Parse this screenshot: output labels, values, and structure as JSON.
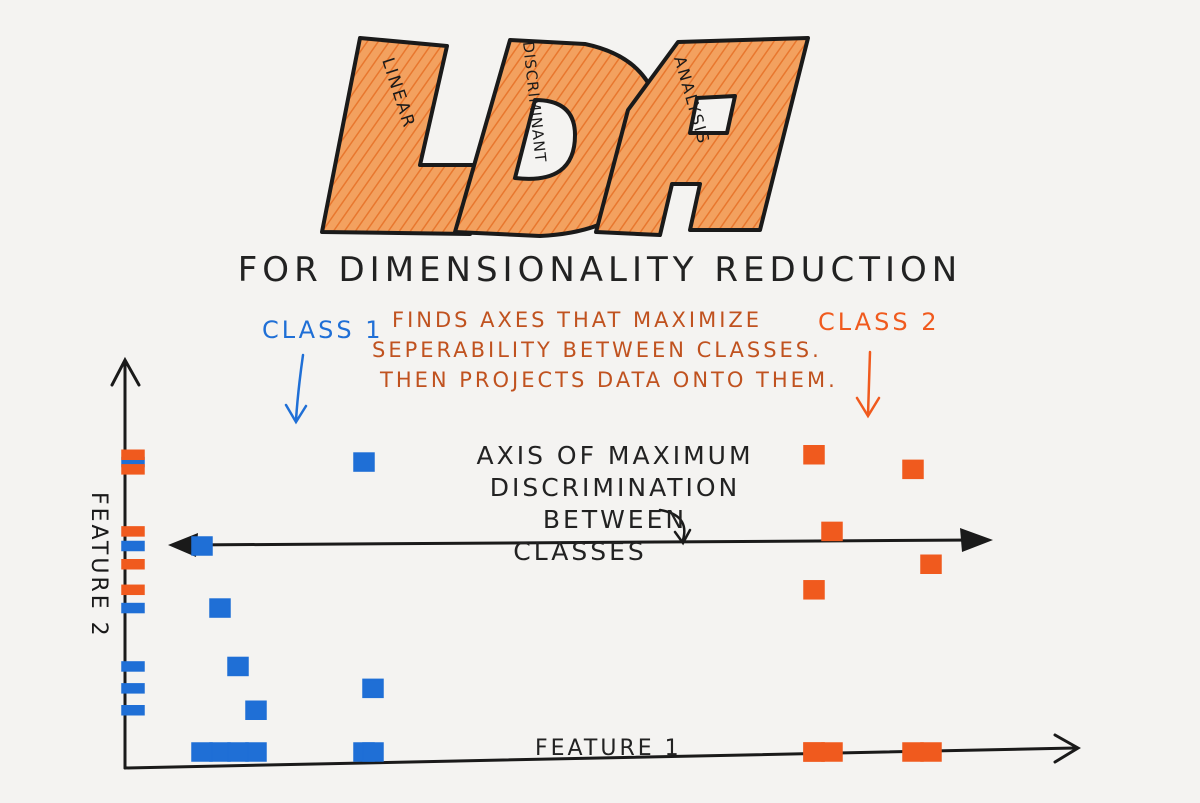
{
  "title": {
    "letters": [
      "L",
      "D",
      "A"
    ],
    "words": [
      "LINEAR",
      "DISCRIMINANT",
      "ANALYSIS"
    ]
  },
  "subtitle": "FOR DIMENSIONALITY REDUCTION",
  "description": [
    "FINDS AXES THAT MAXIMIZE",
    "SEPERABILITY BETWEEN CLASSES.",
    "THEN PROJECTS DATA ONTO THEM."
  ],
  "class1_label": "CLASS 1",
  "class2_label": "CLASS 2",
  "axis_label": [
    "AXIS OF MAXIMUM",
    "DISCRIMINATION BETWEEN",
    "CLASSES"
  ],
  "x_axis_label": "FEATURE 1",
  "y_axis_label": "FEATURE 2",
  "colors": {
    "class1": "#1f6fd6",
    "class2": "#f05a1e",
    "title_fill": "#f0914a",
    "ink": "#1a1a1a"
  },
  "chart_data": {
    "type": "scatter",
    "xlabel": "FEATURE 1",
    "ylabel": "FEATURE 2",
    "xlim": [
      0,
      10
    ],
    "ylim": [
      0,
      10
    ],
    "series": [
      {
        "name": "CLASS 1",
        "points": [
          [
            1.0,
            4.3
          ],
          [
            2.6,
            8.3
          ],
          [
            1.4,
            1.5
          ],
          [
            2.7,
            2.1
          ],
          [
            1.2,
            2.7
          ],
          [
            0.8,
            6.0
          ]
        ]
      },
      {
        "name": "CLASS 2",
        "points": [
          [
            7.6,
            8.5
          ],
          [
            8.7,
            8.1
          ],
          [
            7.8,
            6.4
          ],
          [
            8.9,
            5.5
          ],
          [
            7.6,
            4.8
          ]
        ]
      }
    ]
  }
}
